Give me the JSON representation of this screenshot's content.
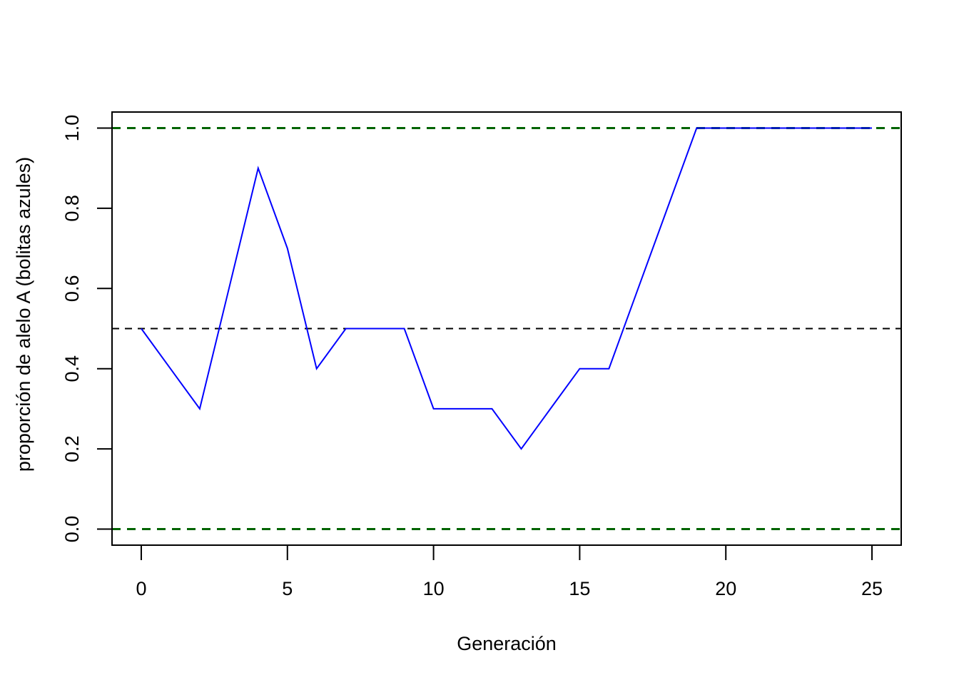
{
  "chart_data": {
    "type": "line",
    "xlabel": "Generación",
    "ylabel": "proporción de alelo A (bolitas azules)",
    "xlim": [
      -1,
      26
    ],
    "ylim": [
      -0.04,
      1.04
    ],
    "x_ticks": [
      0,
      5,
      10,
      15,
      20,
      25
    ],
    "y_ticks": [
      0.0,
      0.2,
      0.4,
      0.6,
      0.8,
      1.0
    ],
    "x_tick_labels": [
      "0",
      "5",
      "10",
      "15",
      "20",
      "25"
    ],
    "y_tick_labels": [
      "0.0",
      "0.2",
      "0.4",
      "0.6",
      "0.8",
      "1.0"
    ],
    "grid": false,
    "series": [
      {
        "color": "#0000FF",
        "x": [
          0,
          1,
          2,
          3,
          4,
          5,
          6,
          7,
          8,
          9,
          10,
          11,
          12,
          13,
          14,
          15,
          16,
          17,
          18,
          19,
          20,
          21,
          22,
          23,
          24,
          25
        ],
        "values": [
          0.5,
          0.4,
          0.3,
          0.6,
          0.9,
          0.7,
          0.4,
          0.5,
          0.5,
          0.5,
          0.3,
          0.3,
          0.3,
          0.2,
          0.3,
          0.4,
          0.4,
          0.6,
          0.8,
          1.0,
          1.0,
          1.0,
          1.0,
          1.0,
          1.0,
          1.0
        ]
      }
    ],
    "reference_lines": [
      {
        "y": 1.0,
        "color": "#006400",
        "style": "dashed"
      },
      {
        "y": 0.5,
        "color": "#000000",
        "style": "dashed"
      },
      {
        "y": 0.0,
        "color": "#006400",
        "style": "dashed"
      }
    ]
  }
}
